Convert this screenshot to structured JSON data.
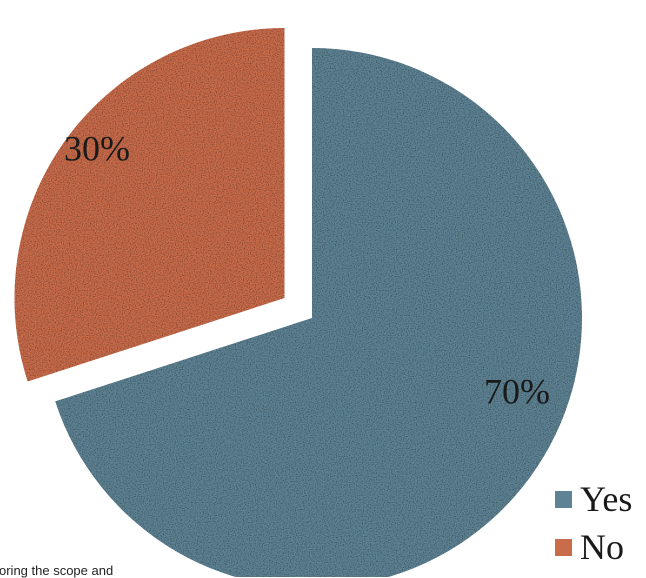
{
  "chart_data": {
    "type": "pie",
    "categories": [
      "Yes",
      "No"
    ],
    "values": [
      70,
      30
    ],
    "data_labels": [
      "70%",
      "30%"
    ],
    "colors": [
      "#5e8394",
      "#c96c4b"
    ],
    "exploded": "No",
    "legend": {
      "placement": "bottom-right",
      "entries": [
        "Yes",
        "No"
      ]
    }
  },
  "stray_text": "oring the scope and"
}
